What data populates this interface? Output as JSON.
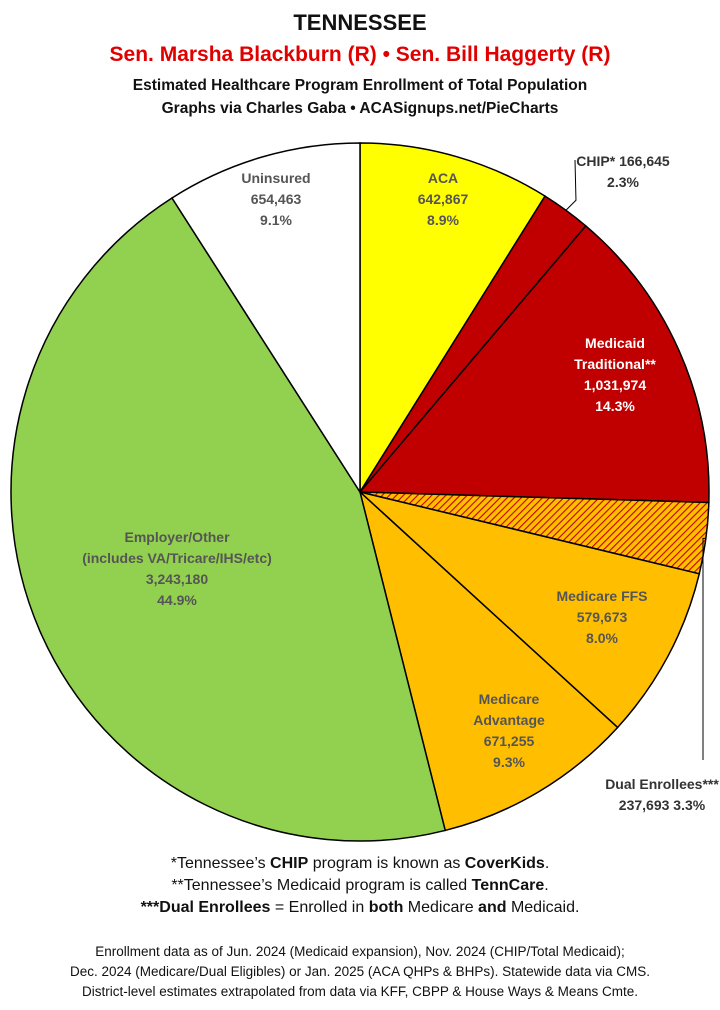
{
  "header": {
    "state": "TENNESSEE",
    "senators": "Sen. Marsha Blackburn (R) • Sen. Bill Haggerty (R)",
    "subtitle": "Estimated Healthcare Program Enrollment of Total Population",
    "credit": "Graphs via Charles Gaba   •   ACASignups.net/PieCharts"
  },
  "chart_data": {
    "type": "pie",
    "slices": [
      {
        "name": "ACA",
        "value": 642867,
        "value_label": "642,867",
        "pct": "8.9%",
        "color": "#ffff00",
        "label_lines": [
          "ACA",
          "642,867",
          "8.9%"
        ]
      },
      {
        "name": "CHIP*",
        "value": 166645,
        "value_label": "166,645",
        "pct": "2.3%",
        "color": "#c00000",
        "label_lines": [
          "CHIP* 166,645",
          "2.3%"
        ]
      },
      {
        "name": "Medicaid Traditional**",
        "value": 1031974,
        "value_label": "1,031,974",
        "pct": "14.3%",
        "color": "#c00000",
        "label_lines": [
          "Medicaid",
          "Traditional**",
          "1,031,974",
          "14.3%"
        ]
      },
      {
        "name": "Dual Enrollees***",
        "value": 237693,
        "value_label": "237,693",
        "pct": "3.3%",
        "color": "#ffbf00",
        "pattern": "hatch",
        "label_lines": [
          "Dual Enrollees***",
          "237,693 3.3%"
        ]
      },
      {
        "name": "Medicare FFS",
        "value": 579673,
        "value_label": "579,673",
        "pct": "8.0%",
        "color": "#ffbf00",
        "label_lines": [
          "Medicare FFS",
          "579,673",
          "8.0%"
        ]
      },
      {
        "name": "Medicare Advantage",
        "value": 671255,
        "value_label": "671,255",
        "pct": "9.3%",
        "color": "#ffbf00",
        "label_lines": [
          "Medicare",
          "Advantage",
          "671,255",
          "9.3%"
        ]
      },
      {
        "name": "Employer/Other",
        "value": 3243180,
        "value_label": "3,243,180",
        "pct": "44.9%",
        "color": "#92d050",
        "label_lines": [
          "Employer/Other",
          "(includes VA/Tricare/IHS/etc)",
          "3,243,180",
          "44.9%"
        ]
      },
      {
        "name": "Uninsured",
        "value": 654463,
        "value_label": "654,463",
        "pct": "9.1%",
        "color": "#ffffff",
        "label_lines": [
          "Uninsured",
          "654,463",
          "9.1%"
        ]
      }
    ]
  },
  "notes": {
    "line1_pre": "*Tennessee’s ",
    "line1_b1": "CHIP",
    "line1_mid": " program is known as ",
    "line1_b2": "CoverKids",
    "line1_end": ".",
    "line2_pre": "**Tennessee’s Medicaid program is called ",
    "line2_b": "TennCare",
    "line2_end": ".",
    "line3_b1": "***Dual Enrollees",
    "line3_mid1": " = Enrolled in ",
    "line3_b2": "both",
    "line3_mid2": " Medicare ",
    "line3_b3": "and",
    "line3_end": " Medicaid."
  },
  "footer": {
    "line1": "Enrollment data as of Jun. 2024 (Medicaid expansion), Nov. 2024 (CHIP/Total Medicaid);",
    "line2": "Dec. 2024 (Medicare/Dual Eligibles) or Jan. 2025 (ACA QHPs & BHPs). Statewide data via CMS.",
    "line3": "District-level estimates extrapolated from data via KFF, CBPP & House Ways & Means Cmte."
  }
}
